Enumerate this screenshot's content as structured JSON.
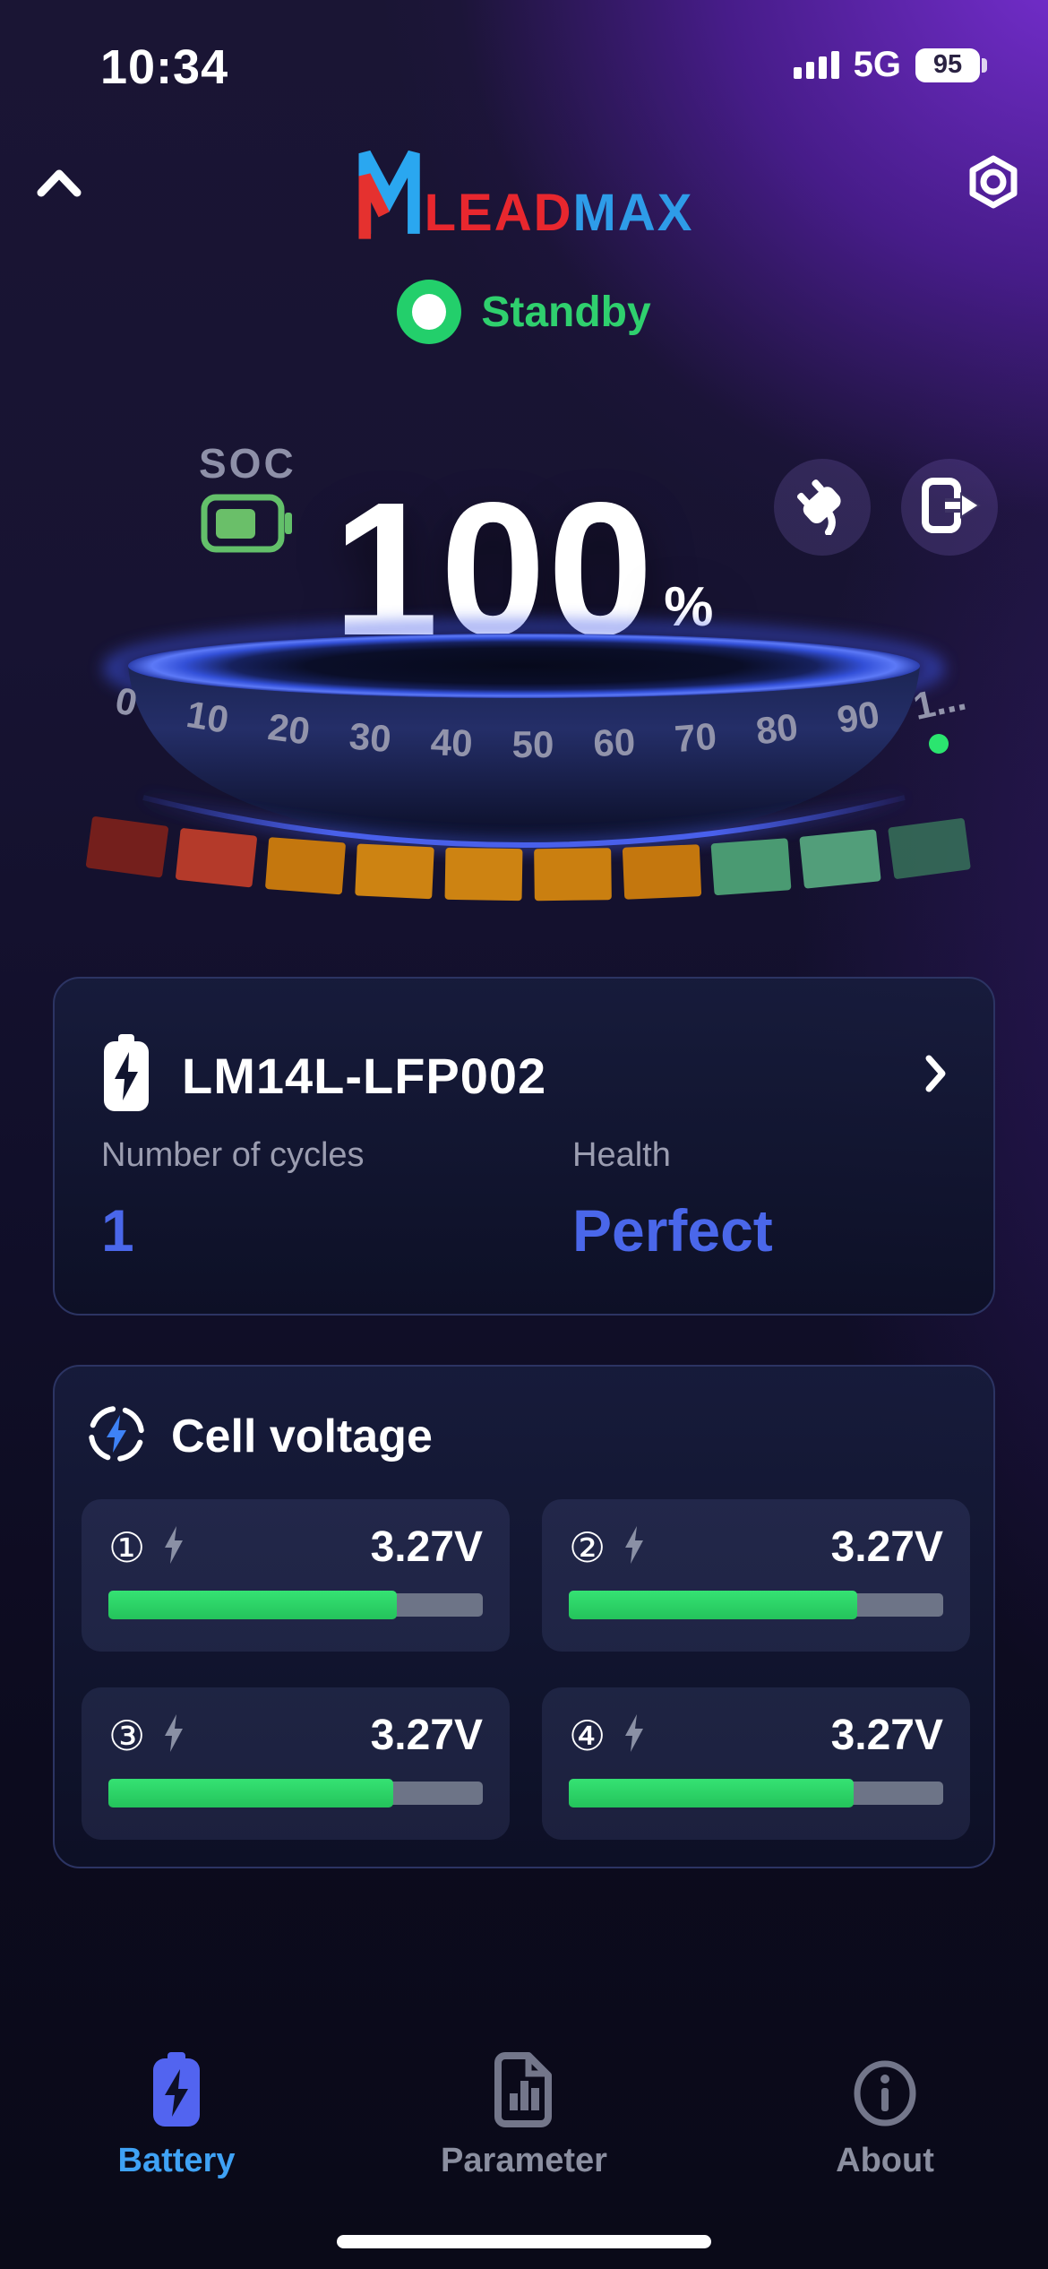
{
  "status_bar": {
    "time": "10:34",
    "network": "5G",
    "battery": "95"
  },
  "header": {
    "logo": {
      "lead": "LEAD",
      "max": "MAX"
    },
    "status": {
      "label": "Standby",
      "color": "#2fd06e"
    }
  },
  "soc": {
    "label": "SOC",
    "value": "100",
    "unit": "%"
  },
  "gauge": {
    "ticks": [
      "0",
      "10",
      "20",
      "30",
      "40",
      "50",
      "60",
      "70",
      "80",
      "90",
      "1..."
    ],
    "indicator_color": "#2be56f",
    "segments": [
      {
        "color": "#8a2218",
        "opacity": 0.82
      },
      {
        "color": "#b43a2a",
        "opacity": 1
      },
      {
        "color": "#c4770e",
        "opacity": 1
      },
      {
        "color": "#cd8312",
        "opacity": 1
      },
      {
        "color": "#cd8312",
        "opacity": 1
      },
      {
        "color": "#ca7f10",
        "opacity": 1
      },
      {
        "color": "#c4770e",
        "opacity": 1
      },
      {
        "color": "#4a9a72",
        "opacity": 1
      },
      {
        "color": "#55a77e",
        "opacity": 0.95
      },
      {
        "color": "#3a7a5c",
        "opacity": 0.78
      }
    ]
  },
  "battery_card": {
    "name": "LM14L-LFP002",
    "stats": [
      {
        "label": "Number of cycles",
        "value": "1"
      },
      {
        "label": "Health",
        "value": "Perfect"
      }
    ],
    "accent": "#4a67ea"
  },
  "cell_voltage": {
    "title": "Cell voltage",
    "bar_color": "#2bd465",
    "cells": [
      {
        "index": "①",
        "voltage": "3.27V",
        "percent": 77
      },
      {
        "index": "②",
        "voltage": "3.27V",
        "percent": 77
      },
      {
        "index": "③",
        "voltage": "3.27V",
        "percent": 76
      },
      {
        "index": "④",
        "voltage": "3.27V",
        "percent": 76
      }
    ]
  },
  "nav": {
    "items": [
      {
        "label": "Battery",
        "active": true
      },
      {
        "label": "Parameter",
        "active": false
      },
      {
        "label": "About",
        "active": false
      }
    ],
    "active_color": "#3fa2f5",
    "inactive_color": "#8b8fa0"
  }
}
